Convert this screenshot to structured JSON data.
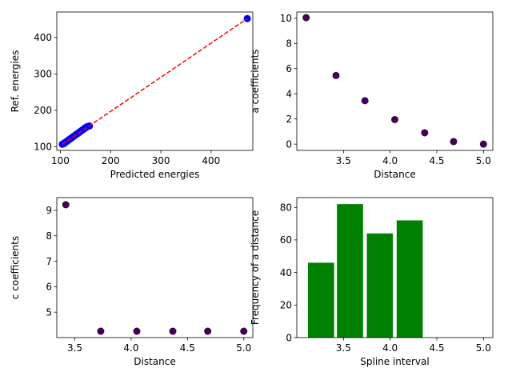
{
  "chart_data": [
    {
      "type": "scatter",
      "title": "",
      "xlabel": "Predicted energies",
      "ylabel": "Ref. energies",
      "xlim": [
        93,
        483
      ],
      "ylim": [
        90,
        470
      ],
      "xticks": [
        100,
        200,
        300,
        400
      ],
      "yticks": [
        100,
        200,
        300,
        400
      ],
      "xtick_labels": [
        "100",
        "200",
        "300",
        "400"
      ],
      "ytick_labels": [
        "100",
        "200",
        "300",
        "400"
      ],
      "point_color": "#0000ff",
      "line_color": "#ff0000",
      "line_style": "dashed",
      "series": [
        {
          "kind": "points",
          "x": [
            104,
            106,
            108,
            110,
            112,
            114,
            116,
            118,
            120,
            122,
            124,
            126,
            128,
            130,
            132,
            134,
            136,
            138,
            140,
            142,
            144,
            146,
            148,
            150,
            152,
            155,
            158,
            472
          ],
          "y": [
            107,
            108,
            110,
            112,
            114,
            116,
            118,
            120,
            122,
            124,
            126,
            128,
            130,
            132,
            134,
            136,
            138,
            140,
            142,
            144,
            146,
            148,
            150,
            152,
            154,
            156,
            157,
            452
          ]
        },
        {
          "kind": "line",
          "x": [
            104,
            472
          ],
          "y": [
            107,
            452
          ]
        }
      ]
    },
    {
      "type": "scatter",
      "title": "",
      "xlabel": "Distance",
      "ylabel": "a coefficients",
      "xlim": [
        3.0,
        5.1
      ],
      "ylim": [
        -0.5,
        10.5
      ],
      "xticks": [
        3.5,
        4.0,
        4.5,
        5.0
      ],
      "yticks": [
        0,
        2,
        4,
        6,
        8,
        10
      ],
      "xtick_labels": [
        "3.5",
        "4.0",
        "4.5",
        "5.0"
      ],
      "ytick_labels": [
        "0",
        "2",
        "4",
        "6",
        "8",
        "10"
      ],
      "point_color": "#440154",
      "series": [
        {
          "kind": "points",
          "x": [
            3.1,
            3.42,
            3.73,
            4.05,
            4.37,
            4.68,
            5.0
          ],
          "y": [
            10.05,
            5.45,
            3.45,
            1.95,
            0.9,
            0.2,
            0.0
          ]
        }
      ]
    },
    {
      "type": "scatter",
      "title": "",
      "xlabel": "Distance",
      "ylabel": "c coefficients",
      "xlim": [
        3.34,
        5.08
      ],
      "ylim": [
        4.0,
        9.5
      ],
      "xticks": [
        3.5,
        4.0,
        4.5,
        5.0
      ],
      "yticks": [
        5,
        6,
        7,
        8,
        9
      ],
      "xtick_labels": [
        "3.5",
        "4.0",
        "4.5",
        "5.0"
      ],
      "ytick_labels": [
        "5",
        "6",
        "7",
        "8",
        "9"
      ],
      "point_color": "#440154",
      "series": [
        {
          "kind": "points",
          "x": [
            3.42,
            3.73,
            4.05,
            4.37,
            4.68,
            5.0
          ],
          "y": [
            9.22,
            4.25,
            4.25,
            4.25,
            4.25,
            4.25
          ]
        }
      ]
    },
    {
      "type": "bar",
      "title": "",
      "xlabel": "Spline interval",
      "ylabel": "Frequency of a distance",
      "xlim": [
        3.0,
        5.1
      ],
      "ylim": [
        0,
        86
      ],
      "xticks": [
        3.5,
        4.0,
        4.5,
        5.0
      ],
      "yticks": [
        0,
        20,
        40,
        60,
        80
      ],
      "xtick_labels": [
        "3.5",
        "4.0",
        "4.5",
        "5.0"
      ],
      "ytick_labels": [
        "0",
        "20",
        "40",
        "60",
        "80"
      ],
      "bar_color": "#008000",
      "bar_width": 0.28,
      "series": [
        {
          "kind": "bars",
          "x": [
            3.26,
            3.57,
            3.89,
            4.21,
            4.52,
            4.84
          ],
          "y": [
            46,
            82,
            64,
            72,
            0,
            0
          ]
        }
      ]
    }
  ]
}
